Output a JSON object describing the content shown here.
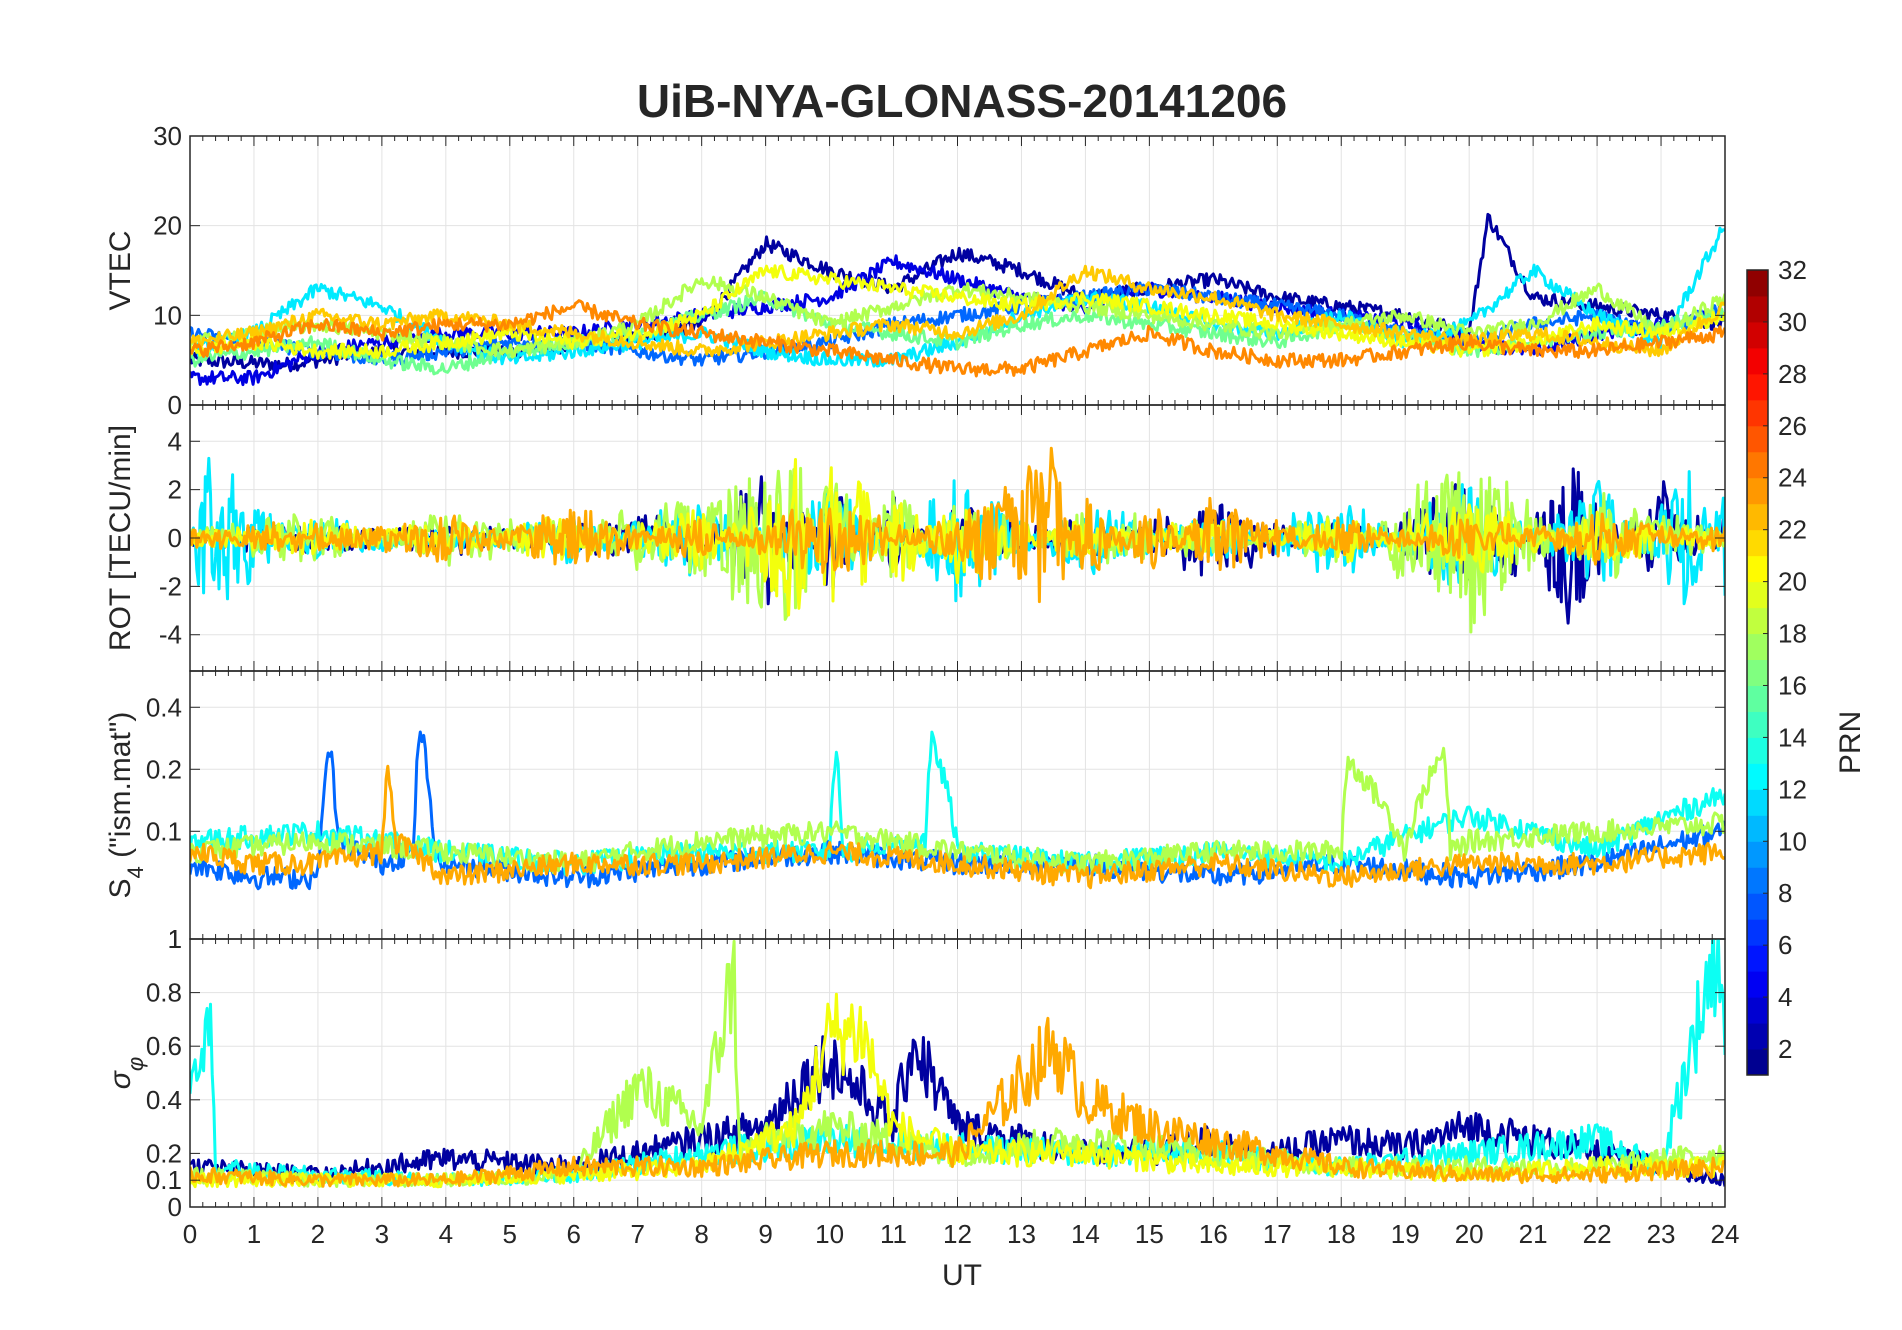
{
  "title": "UiB-NYA-GLONASS-20141206",
  "x_axis": {
    "label": "UT",
    "range": [
      0,
      24
    ],
    "ticks": [
      0,
      1,
      2,
      3,
      4,
      5,
      6,
      7,
      8,
      9,
      10,
      11,
      12,
      13,
      14,
      15,
      16,
      17,
      18,
      19,
      20,
      21,
      22,
      23,
      24
    ]
  },
  "colorbar": {
    "label": "PRN",
    "range": [
      1,
      32
    ],
    "ticks": [
      2,
      4,
      6,
      8,
      10,
      12,
      14,
      16,
      18,
      20,
      22,
      24,
      26,
      28,
      30,
      32
    ],
    "colormap": "jet"
  },
  "panels": [
    {
      "id": "vtec",
      "ylabel": "VTEC",
      "ylim": [
        0,
        30
      ],
      "yticks": [
        0,
        10,
        20,
        30
      ]
    },
    {
      "id": "rot",
      "ylabel": "ROT [TECU/min]",
      "ylim": [
        -5.5,
        5.5
      ],
      "yticks": [
        -4,
        -2,
        0,
        2,
        4
      ]
    },
    {
      "id": "s4",
      "ylabel_main": "S",
      "ylabel_sub": "4",
      "ylabel_tail": " (\"ism.mat\")",
      "ylim": [
        0.03,
        0.6
      ],
      "yticks": [
        0.1,
        0.2,
        0.4,
        1
      ],
      "yscale": "log"
    },
    {
      "id": "sigma",
      "ylabel_main": "σ",
      "ylabel_sub": "φ",
      "ylim": [
        0,
        1
      ],
      "yticks": [
        0,
        0.1,
        0.2,
        0.4,
        0.6,
        0.8,
        1
      ]
    }
  ],
  "chart_data": [
    {
      "type": "line",
      "panel": "VTEC",
      "xlabel": "UT",
      "ylabel": "VTEC",
      "xlim": [
        0,
        24
      ],
      "ylim": [
        0,
        30
      ],
      "grid": true,
      "series": [
        {
          "prn": 2,
          "x": [
            0,
            1.5,
            3,
            5,
            6.5,
            8,
            9,
            10,
            11,
            12,
            13,
            14,
            15,
            16,
            17,
            18,
            19,
            20,
            20.3,
            21,
            22,
            23,
            24
          ],
          "y": [
            5,
            4.5,
            6,
            6,
            7,
            9,
            18,
            15,
            13,
            17,
            15,
            12,
            13,
            14,
            12,
            11,
            10,
            8,
            21,
            12,
            11,
            10,
            9
          ]
        },
        {
          "prn": 4,
          "x": [
            0,
            1,
            2,
            3,
            4,
            6,
            7,
            8,
            9,
            10,
            11,
            12,
            13,
            14,
            15,
            16,
            17,
            18,
            19,
            20,
            21,
            22,
            23,
            24
          ],
          "y": [
            3,
            3,
            6,
            7,
            8,
            8,
            9,
            10,
            11,
            12,
            16,
            14,
            12,
            11,
            13,
            12,
            11,
            10,
            9,
            7,
            6,
            8,
            9,
            10
          ]
        },
        {
          "prn": 8,
          "x": [
            0,
            1,
            2,
            3,
            4,
            5,
            6,
            7,
            8,
            9,
            10,
            11,
            12,
            13,
            14,
            15,
            16,
            17,
            18,
            19,
            20,
            21,
            22,
            23,
            24
          ],
          "y": [
            8,
            7,
            6,
            5,
            6,
            7,
            7,
            6,
            5,
            6,
            7,
            9,
            10,
            11,
            12,
            13,
            12,
            11,
            10,
            8,
            7,
            9,
            10,
            8,
            11
          ]
        },
        {
          "prn": 12,
          "x": [
            0,
            1,
            2,
            3,
            4,
            5,
            6,
            7,
            8,
            9,
            10,
            11,
            12,
            13,
            14,
            15,
            16,
            17,
            18,
            19,
            20,
            21,
            22,
            23,
            24
          ],
          "y": [
            6,
            8,
            13,
            11,
            7,
            5,
            6,
            7,
            8,
            6,
            5,
            5,
            7,
            10,
            12,
            11,
            9,
            8,
            10,
            7,
            9,
            15,
            10,
            7,
            20
          ]
        },
        {
          "prn": 16,
          "x": [
            0,
            1,
            2,
            3,
            4,
            5,
            6,
            7,
            8,
            9,
            10,
            11,
            12,
            13,
            14,
            15,
            16,
            17,
            18,
            19,
            20,
            21,
            22,
            23,
            24
          ],
          "y": [
            5,
            6,
            7,
            5,
            4,
            6,
            7,
            8,
            10,
            12,
            9,
            8,
            7,
            9,
            10,
            9,
            8,
            7,
            9,
            8,
            6,
            7,
            8,
            9,
            10
          ]
        },
        {
          "prn": 18,
          "x": [
            0,
            1,
            2,
            3,
            4,
            5,
            6,
            7,
            8,
            9,
            10,
            11,
            12,
            13,
            14,
            15,
            16,
            17,
            18,
            19,
            20,
            21,
            22,
            23,
            24
          ],
          "y": [
            7,
            8,
            9,
            8,
            7,
            6,
            7,
            9,
            14,
            12,
            9,
            11,
            13,
            12,
            11,
            10,
            9,
            8,
            9,
            10,
            8,
            9,
            13,
            8,
            12
          ]
        },
        {
          "prn": 20,
          "x": [
            0,
            1,
            2,
            3,
            4,
            5,
            6,
            7,
            8,
            9,
            10,
            11,
            12,
            13,
            14,
            15,
            16,
            17,
            18,
            19,
            20,
            21,
            22,
            23,
            24
          ],
          "y": [
            6,
            7,
            6,
            6,
            7,
            8,
            7,
            8,
            10,
            15,
            14,
            13,
            12,
            11,
            12,
            11,
            10,
            9,
            8,
            7,
            6,
            7,
            9,
            8,
            10
          ]
        },
        {
          "prn": 22,
          "x": [
            0,
            1,
            2,
            3,
            4,
            5,
            6,
            7,
            8,
            9,
            10,
            11,
            12,
            13,
            14,
            15,
            16,
            17,
            18,
            19,
            20,
            21,
            22,
            23,
            24
          ],
          "y": [
            7,
            8,
            10,
            9,
            10,
            9,
            8,
            7,
            6,
            7,
            8,
            9,
            8,
            10,
            15,
            13,
            12,
            10,
            9,
            8,
            7,
            8,
            7,
            6,
            11
          ]
        },
        {
          "prn": 24,
          "x": [
            0,
            1,
            2,
            3,
            4,
            5,
            6,
            7,
            8,
            9,
            10,
            11,
            12,
            13,
            14,
            15,
            16,
            17,
            18,
            19,
            20,
            21,
            22,
            23,
            24
          ],
          "y": [
            6,
            7,
            9,
            8,
            9,
            9,
            11,
            9,
            8,
            7,
            6,
            5,
            4,
            4,
            6,
            8,
            6,
            5,
            5,
            6,
            7,
            6,
            6,
            7,
            8
          ]
        }
      ]
    },
    {
      "type": "line",
      "panel": "ROT",
      "xlabel": "UT",
      "ylabel": "ROT [TECU/min]",
      "xlim": [
        0,
        24
      ],
      "ylim": [
        -5.5,
        5.5
      ],
      "grid": true,
      "series": [
        {
          "prn": 2,
          "x": [
            0,
            2,
            4,
            6,
            8,
            9,
            9.5,
            10,
            11,
            12,
            14,
            16,
            18,
            20,
            20.5,
            21.5,
            23,
            24
          ],
          "y": [
            0,
            0.5,
            -0.5,
            0.5,
            1,
            -4,
            3,
            -3,
            2,
            -2,
            1,
            -2,
            1,
            -3,
            4,
            -5,
            3,
            -1
          ]
        },
        {
          "prn": 12,
          "x": [
            0,
            0.3,
            2,
            4,
            6,
            8,
            10,
            12,
            14,
            16,
            18,
            20,
            22,
            23.5,
            24
          ],
          "y": [
            0,
            4.5,
            -1,
            0.5,
            -1,
            2,
            -3,
            3,
            -2,
            1,
            -2,
            3,
            -3,
            4,
            -3
          ]
        },
        {
          "prn": 18,
          "x": [
            0,
            2,
            4,
            6,
            8,
            9.5,
            10,
            11,
            12,
            14,
            16,
            18,
            20,
            22,
            24
          ],
          "y": [
            0,
            -1,
            1,
            0.5,
            2,
            5,
            -4,
            3,
            -2,
            1,
            0.5,
            -1,
            5,
            -2,
            0
          ]
        },
        {
          "prn": 20,
          "x": [
            0,
            2,
            4,
            6,
            8,
            9.5,
            10,
            10.5,
            11,
            12,
            14,
            16,
            18,
            20,
            22,
            24
          ],
          "y": [
            0,
            0.5,
            -0.5,
            1,
            -2,
            5,
            -5,
            4,
            -3,
            2,
            -1,
            1,
            -1,
            2,
            -1,
            0
          ]
        },
        {
          "prn": 23,
          "x": [
            0,
            2,
            4,
            6,
            8,
            10,
            12,
            13.5,
            14,
            15,
            16,
            18,
            20,
            22,
            24
          ],
          "y": [
            0,
            0.5,
            -1,
            1.5,
            -1,
            2,
            -1,
            -4.5,
            3,
            -2,
            2,
            -1,
            1,
            -1,
            0.5
          ]
        }
      ]
    },
    {
      "type": "line",
      "panel": "S4",
      "xlabel": "UT",
      "ylabel": "S4 (\"ism.mat\")",
      "xlim": [
        0,
        24
      ],
      "ylim": [
        0.03,
        0.6
      ],
      "yscale": "log",
      "grid": true,
      "series": [
        {
          "prn": 8,
          "x": [
            0,
            1,
            2,
            2.2,
            2.3,
            3,
            3.5,
            3.6,
            3.8,
            4,
            6,
            8,
            10,
            12,
            14,
            16,
            18,
            20,
            22,
            24
          ],
          "y": [
            0.07,
            0.06,
            0.06,
            0.26,
            0.09,
            0.07,
            0.08,
            0.33,
            0.08,
            0.07,
            0.06,
            0.07,
            0.08,
            0.07,
            0.07,
            0.06,
            0.07,
            0.06,
            0.07,
            0.1
          ]
        },
        {
          "prn": 13,
          "x": [
            0,
            2,
            4,
            6,
            8,
            10,
            10.1,
            10.2,
            11.5,
            11.6,
            12,
            14,
            16,
            18,
            20,
            22,
            24
          ],
          "y": [
            0.09,
            0.1,
            0.08,
            0.07,
            0.08,
            0.08,
            0.25,
            0.08,
            0.09,
            0.27,
            0.08,
            0.07,
            0.08,
            0.07,
            0.12,
            0.08,
            0.15
          ]
        },
        {
          "prn": 18,
          "x": [
            0,
            2,
            4,
            6,
            8,
            10,
            12,
            14,
            16,
            18,
            18.1,
            19,
            19.6,
            19.7,
            20,
            22,
            24
          ],
          "y": [
            0.08,
            0.09,
            0.08,
            0.07,
            0.09,
            0.1,
            0.08,
            0.07,
            0.08,
            0.08,
            0.22,
            0.08,
            0.24,
            0.08,
            0.09,
            0.1,
            0.11
          ]
        },
        {
          "prn": 23,
          "x": [
            0,
            1,
            2,
            3,
            3.1,
            3.2,
            4,
            6,
            8,
            10,
            12,
            14,
            16,
            18,
            20,
            22,
            24
          ],
          "y": [
            0.08,
            0.07,
            0.07,
            0.08,
            0.2,
            0.09,
            0.06,
            0.07,
            0.07,
            0.08,
            0.07,
            0.06,
            0.07,
            0.06,
            0.07,
            0.07,
            0.08
          ]
        }
      ]
    },
    {
      "type": "line",
      "panel": "sigma_phi",
      "xlabel": "UT",
      "ylabel": "σφ",
      "xlim": [
        0,
        24
      ],
      "ylim": [
        0,
        1
      ],
      "grid": true,
      "series": [
        {
          "prn": 2,
          "x": [
            0,
            2,
            4,
            6,
            8,
            9,
            9.5,
            10,
            11,
            11.3,
            12,
            13,
            14,
            15,
            16,
            17,
            18,
            19,
            20,
            21,
            22,
            23,
            24
          ],
          "y": [
            0.15,
            0.12,
            0.18,
            0.15,
            0.25,
            0.3,
            0.45,
            0.55,
            0.3,
            0.62,
            0.3,
            0.25,
            0.2,
            0.2,
            0.25,
            0.2,
            0.25,
            0.22,
            0.3,
            0.25,
            0.2,
            0.15,
            0.1
          ]
        },
        {
          "prn": 13,
          "x": [
            0,
            0.3,
            0.4,
            1,
            2,
            4,
            6,
            8,
            10,
            12,
            14,
            16,
            18,
            20,
            22,
            23,
            23.9,
            24
          ],
          "y": [
            0.5,
            0.75,
            0.15,
            0.13,
            0.12,
            0.1,
            0.12,
            0.2,
            0.25,
            0.22,
            0.2,
            0.2,
            0.15,
            0.2,
            0.25,
            0.15,
            1,
            0.6
          ]
        },
        {
          "prn": 18,
          "x": [
            0,
            2,
            4,
            6,
            7,
            8,
            8.5,
            8.6,
            9,
            10,
            12,
            14,
            16,
            18,
            20,
            22,
            24
          ],
          "y": [
            0.12,
            0.1,
            0.1,
            0.12,
            0.45,
            0.3,
            0.88,
            0.2,
            0.25,
            0.3,
            0.2,
            0.25,
            0.2,
            0.15,
            0.15,
            0.15,
            0.2
          ]
        },
        {
          "prn": 20,
          "x": [
            0,
            2,
            4,
            6,
            8,
            9.5,
            10,
            10.5,
            11,
            12,
            14,
            16,
            18,
            20,
            22,
            24
          ],
          "y": [
            0.1,
            0.1,
            0.1,
            0.12,
            0.15,
            0.3,
            0.65,
            0.66,
            0.3,
            0.2,
            0.2,
            0.15,
            0.15,
            0.12,
            0.15,
            0.15
          ]
        },
        {
          "prn": 23,
          "x": [
            0,
            2,
            4,
            6,
            8,
            10,
            12,
            13.5,
            14,
            15,
            16,
            17,
            18,
            20,
            22,
            24
          ],
          "y": [
            0.12,
            0.1,
            0.1,
            0.15,
            0.15,
            0.2,
            0.2,
            0.6,
            0.4,
            0.3,
            0.25,
            0.2,
            0.15,
            0.12,
            0.12,
            0.15
          ]
        }
      ]
    }
  ]
}
